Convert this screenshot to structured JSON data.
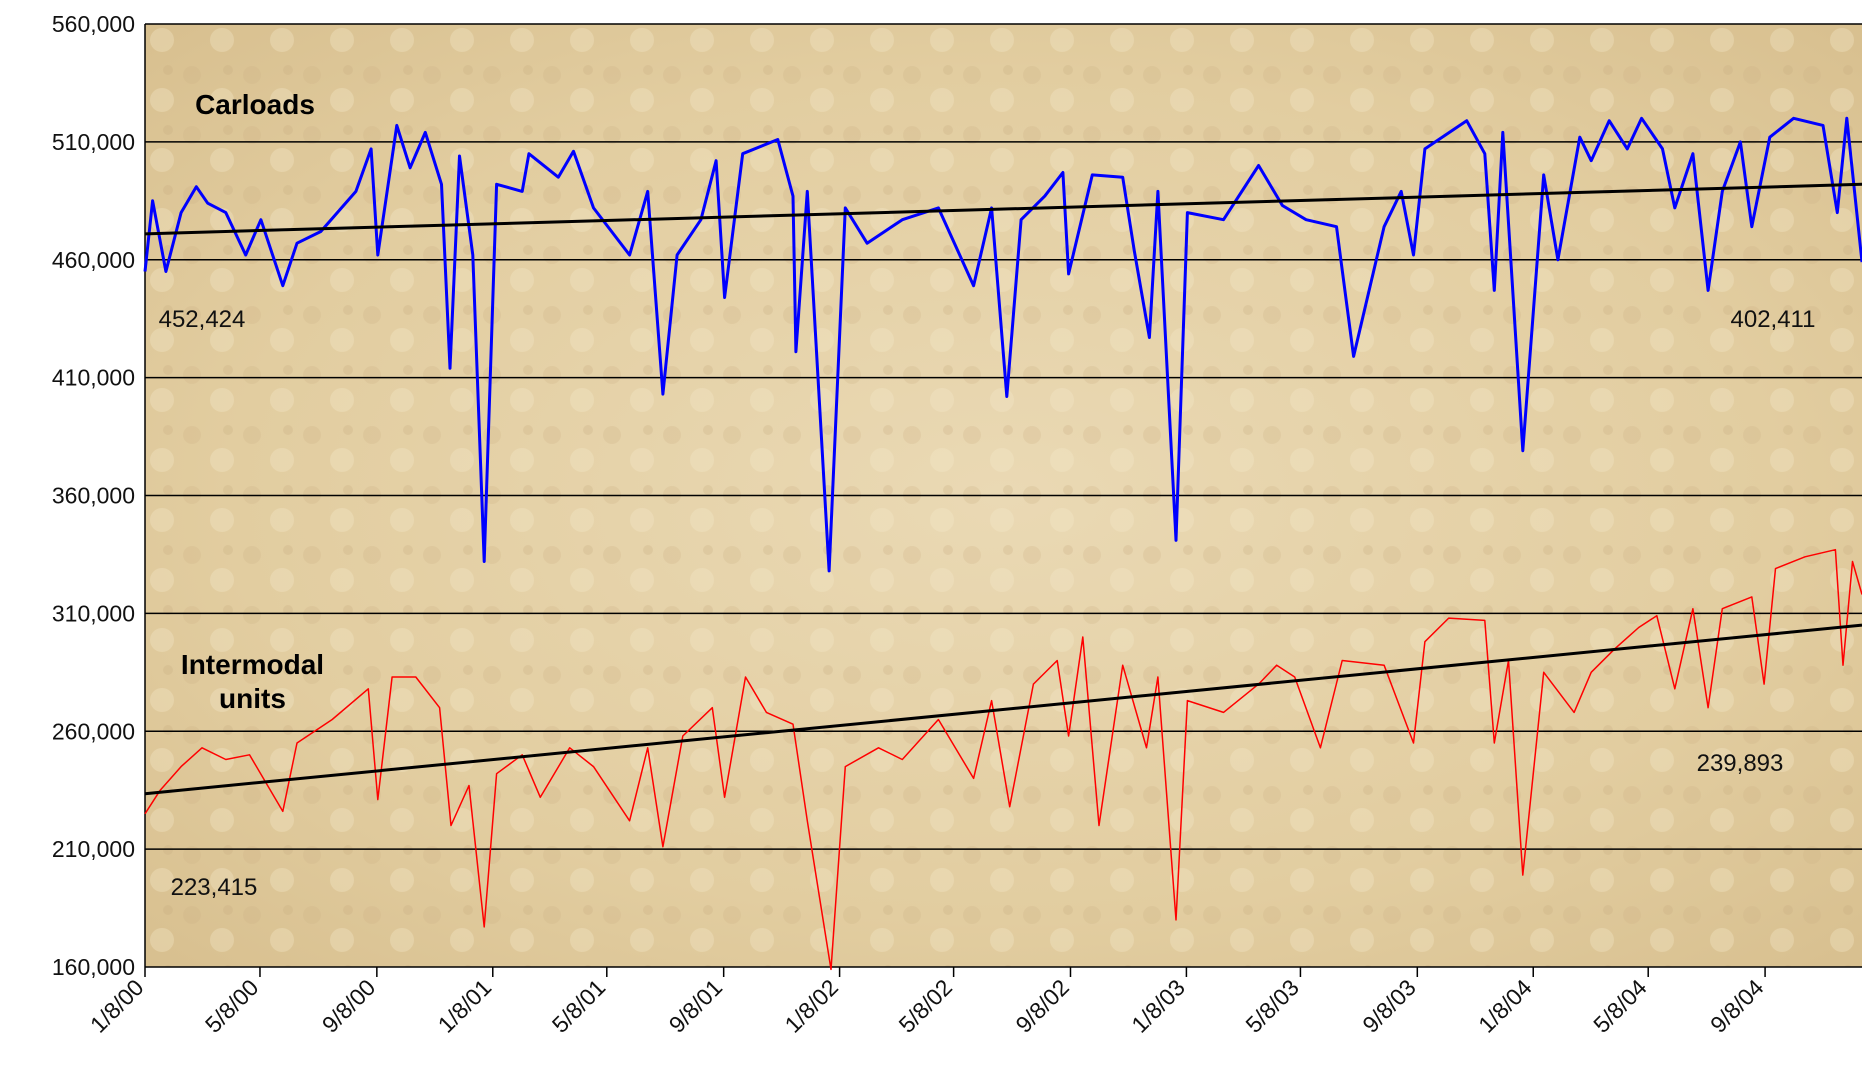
{
  "chart_data": {
    "type": "line",
    "xlim": [
      "1/8/00",
      "12/19/04"
    ],
    "xticks": [
      "1/8/00",
      "5/8/00",
      "9/8/00",
      "1/8/01",
      "5/8/01",
      "9/8/01",
      "1/8/02",
      "5/8/02",
      "9/8/02",
      "1/8/03",
      "5/8/03",
      "9/8/03",
      "1/8/04",
      "5/8/04",
      "9/8/04"
    ],
    "ylim": [
      160000,
      560000
    ],
    "yticks": [
      {
        "value": 160000,
        "label": "160,000"
      },
      {
        "value": 210000,
        "label": "210,000"
      },
      {
        "value": 260000,
        "label": "260,000"
      },
      {
        "value": 310000,
        "label": "310,000"
      },
      {
        "value": 360000,
        "label": "360,000"
      },
      {
        "value": 410000,
        "label": "410,000"
      },
      {
        "value": 460000,
        "label": "460,000"
      },
      {
        "value": 510000,
        "label": "510,000"
      },
      {
        "value": 560000,
        "label": "560,000"
      }
    ],
    "grid": true,
    "series": [
      {
        "name": "Carloads",
        "color": "#0000ff",
        "trend_color": "#000000",
        "trend": [
          471000,
          492000
        ],
        "x": [
          "1/8/00",
          "1/16/00",
          "1/30/00",
          "2/15/00",
          "3/2/00",
          "3/14/00",
          "4/2/00",
          "4/23/00",
          "5/9/00",
          "6/1/00",
          "6/16/00",
          "7/11/00",
          "8/17/00",
          "9/2/00",
          "9/9/00",
          "9/29/00",
          "10/13/00",
          "10/29/00",
          "11/15/00",
          "11/24/00",
          "12/4/00",
          "12/18/00",
          "12/30/00",
          "1/12/01",
          "2/8/01",
          "2/15/01",
          "3/18/01",
          "4/3/01",
          "4/24/01",
          "6/1/01",
          "6/20/01",
          "7/6/01",
          "7/21/01",
          "8/15/01",
          "8/31/01",
          "9/9/01",
          "9/28/01",
          "11/4/01",
          "11/20/01",
          "11/23/01",
          "12/5/01",
          "12/28/01",
          "1/14/02",
          "2/6/02",
          "3/15/02",
          "4/22/02",
          "5/29/02",
          "6/17/02",
          "7/3/02",
          "7/18/02",
          "8/12/02",
          "8/31/02",
          "9/6/02",
          "10/1/02",
          "11/2/02",
          "11/14/02",
          "11/30/02",
          "12/9/02",
          "12/28/02",
          "1/9/03",
          "2/16/03",
          "3/25/03",
          "4/19/03",
          "5/14/03",
          "6/15/03",
          "7/3/03",
          "8/4/03",
          "8/22/03",
          "9/4/03",
          "9/16/03",
          "10/30/03",
          "11/18/03",
          "11/28/03",
          "12/7/03",
          "12/28/03",
          "1/19/04",
          "2/3/04",
          "2/26/04",
          "3/9/04",
          "3/28/04",
          "4/16/04",
          "5/1/04",
          "5/23/04",
          "6/5/04",
          "6/24/04",
          "7/10/04",
          "7/25/04",
          "8/13/04",
          "8/25/04",
          "9/13/04",
          "10/8/04",
          "11/8/04",
          "11/23/04",
          "12/3/04",
          "12/19/04"
        ],
        "values": [
          455000,
          485000,
          455000,
          480000,
          491000,
          484000,
          480000,
          462000,
          477000,
          449000,
          467000,
          472000,
          489000,
          507000,
          462000,
          517000,
          499000,
          514000,
          492000,
          414000,
          504000,
          462000,
          332000,
          492000,
          489000,
          505000,
          495000,
          506000,
          482000,
          462000,
          489000,
          403000,
          462000,
          477000,
          502000,
          444000,
          505000,
          511000,
          487000,
          421000,
          489000,
          328000,
          482000,
          467000,
          477000,
          482000,
          449000,
          482000,
          402000,
          477000,
          487000,
          497000,
          454000,
          496000,
          495000,
          464000,
          427000,
          489000,
          341000,
          480000,
          477000,
          500000,
          483000,
          477000,
          474000,
          419000,
          474000,
          489000,
          462000,
          507000,
          519000,
          505000,
          447000,
          514000,
          379000,
          496000,
          460000,
          512000,
          502000,
          519000,
          507000,
          520000,
          507000,
          482000,
          505000,
          447000,
          489000,
          510000,
          474000,
          512000,
          520000,
          517000,
          480000,
          520000,
          459000
        ]
      },
      {
        "name": "Intermodal units",
        "color": "#ff0000",
        "trend_color": "#000000",
        "trend": [
          233500,
          305000
        ],
        "x": [
          "1/8/00",
          "1/24/00",
          "2/15/00",
          "3/8/00",
          "4/2/00",
          "4/27/00",
          "6/1/00",
          "6/16/00",
          "7/23/00",
          "8/30/00",
          "9/9/00",
          "9/24/00",
          "10/19/00",
          "11/13/00",
          "11/25/00",
          "12/14/00",
          "12/30/00",
          "1/12/01",
          "2/8/01",
          "2/27/01",
          "3/30/01",
          "4/24/01",
          "6/1/01",
          "6/20/01",
          "7/6/01",
          "7/27/01",
          "8/27/01",
          "9/9/01",
          "10/1/01",
          "10/23/01",
          "11/20/01",
          "12/5/01",
          "12/30/01",
          "1/14/02",
          "2/18/02",
          "3/15/02",
          "4/22/02",
          "5/29/02",
          "6/17/02",
          "7/6/02",
          "7/31/02",
          "8/25/02",
          "9/6/02",
          "9/21/02",
          "10/8/02",
          "11/2/02",
          "11/27/02",
          "12/9/02",
          "12/28/02",
          "1/9/03",
          "2/16/03",
          "3/25/03",
          "4/13/03",
          "5/2/03",
          "5/29/03",
          "6/21/03",
          "8/4/03",
          "9/4/03",
          "9/16/03",
          "10/11/03",
          "11/18/03",
          "11/28/03",
          "12/13/03",
          "12/28/03",
          "1/19/04",
          "2/20/04",
          "3/9/04",
          "4/3/04",
          "4/28/04",
          "5/17/04",
          "6/5/04",
          "6/24/04",
          "7/10/04",
          "7/25/04",
          "8/25/04",
          "9/7/04",
          "9/19/04",
          "10/20/04",
          "11/21/04",
          "11/29/04",
          "12/9/04",
          "12/19/04"
        ],
        "values": [
          225000,
          235000,
          245000,
          253000,
          248000,
          250000,
          226000,
          255000,
          265000,
          278000,
          231000,
          283000,
          283000,
          270000,
          220000,
          237000,
          177000,
          242000,
          250000,
          232000,
          253000,
          245000,
          222000,
          253000,
          211000,
          258000,
          270000,
          232000,
          283000,
          268000,
          263000,
          222000,
          159000,
          245000,
          253000,
          248000,
          265000,
          240000,
          273000,
          228000,
          280000,
          290000,
          258000,
          300000,
          220000,
          288000,
          253000,
          283000,
          180000,
          273000,
          268000,
          280000,
          288000,
          283000,
          253000,
          290000,
          288000,
          255000,
          298000,
          308000,
          307000,
          255000,
          290000,
          199000,
          285000,
          268000,
          285000,
          295000,
          304000,
          309000,
          278000,
          312000,
          270000,
          312000,
          317000,
          280000,
          329000,
          334000,
          337000,
          288000,
          332000,
          318000
        ]
      }
    ],
    "annotations": [
      "452,424",
      "402,411",
      "223,415",
      "239,893"
    ]
  }
}
